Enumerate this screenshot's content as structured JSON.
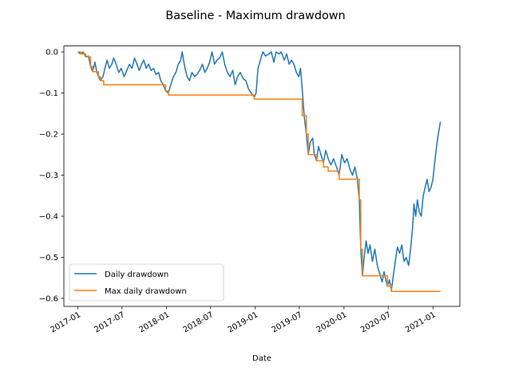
{
  "chart_data": {
    "type": "line",
    "title": "Baseline - Maximum drawdown",
    "xlabel": "Date",
    "ylabel": "",
    "xlim": [
      "2016-11-04",
      "2021-04-22"
    ],
    "ylim": [
      -0.6195,
      0.0145
    ],
    "x_ticks": [
      "2017-01-01",
      "2017-07-01",
      "2018-01-01",
      "2018-07-01",
      "2019-01-01",
      "2019-07-01",
      "2020-01-01",
      "2020-07-01",
      "2021-01-01"
    ],
    "x_tick_labels": [
      "2017-01",
      "2017-07",
      "2018-01",
      "2018-07",
      "2019-01",
      "2019-07",
      "2020-01",
      "2020-07",
      "2021-01"
    ],
    "y_ticks": [
      0.0,
      -0.1,
      -0.2,
      -0.3,
      -0.4,
      -0.5,
      -0.6
    ],
    "y_tick_labels": [
      "0.0",
      "−0.1",
      "−0.2",
      "−0.3",
      "−0.4",
      "−0.5",
      "−0.6"
    ],
    "grid": false,
    "legend_position": "lower left",
    "colors": {
      "daily": "#1f77b4",
      "max": "#ff7f0e"
    },
    "series": [
      {
        "name": "Daily drawdown",
        "points": [
          [
            "2017-01-01",
            0.0
          ],
          [
            "2017-01-12",
            -0.005
          ],
          [
            "2017-01-22",
            0.0
          ],
          [
            "2017-02-02",
            -0.012
          ],
          [
            "2017-02-13",
            -0.01
          ],
          [
            "2017-02-22",
            -0.035
          ],
          [
            "2017-03-02",
            -0.048
          ],
          [
            "2017-03-12",
            -0.025
          ],
          [
            "2017-03-18",
            -0.045
          ],
          [
            "2017-03-26",
            -0.06
          ],
          [
            "2017-04-04",
            -0.07
          ],
          [
            "2017-04-14",
            -0.06
          ],
          [
            "2017-04-22",
            -0.04
          ],
          [
            "2017-05-01",
            -0.02
          ],
          [
            "2017-05-10",
            -0.04
          ],
          [
            "2017-05-20",
            -0.03
          ],
          [
            "2017-05-28",
            -0.015
          ],
          [
            "2017-06-07",
            -0.03
          ],
          [
            "2017-06-18",
            -0.05
          ],
          [
            "2017-06-28",
            -0.04
          ],
          [
            "2017-07-10",
            -0.06
          ],
          [
            "2017-07-21",
            -0.045
          ],
          [
            "2017-08-01",
            -0.03
          ],
          [
            "2017-08-11",
            -0.04
          ],
          [
            "2017-08-22",
            -0.015
          ],
          [
            "2017-09-01",
            -0.03
          ],
          [
            "2017-09-10",
            -0.045
          ],
          [
            "2017-09-20",
            -0.03
          ],
          [
            "2017-09-29",
            -0.02
          ],
          [
            "2017-10-09",
            -0.04
          ],
          [
            "2017-10-19",
            -0.03
          ],
          [
            "2017-10-29",
            -0.045
          ],
          [
            "2017-11-08",
            -0.04
          ],
          [
            "2017-11-18",
            -0.055
          ],
          [
            "2017-11-29",
            -0.05
          ],
          [
            "2017-12-08",
            -0.07
          ],
          [
            "2017-12-18",
            -0.08
          ],
          [
            "2017-12-28",
            -0.095
          ],
          [
            "2018-01-08",
            -0.1
          ],
          [
            "2018-01-18",
            -0.08
          ],
          [
            "2018-01-29",
            -0.06
          ],
          [
            "2018-02-08",
            -0.05
          ],
          [
            "2018-02-18",
            -0.03
          ],
          [
            "2018-02-28",
            -0.02
          ],
          [
            "2018-03-06",
            -0.0
          ],
          [
            "2018-03-16",
            -0.035
          ],
          [
            "2018-03-26",
            -0.06
          ],
          [
            "2018-04-05",
            -0.07
          ],
          [
            "2018-04-15",
            -0.05
          ],
          [
            "2018-04-26",
            -0.06
          ],
          [
            "2018-05-06",
            -0.055
          ],
          [
            "2018-05-17",
            -0.045
          ],
          [
            "2018-05-28",
            -0.03
          ],
          [
            "2018-06-07",
            -0.05
          ],
          [
            "2018-06-17",
            -0.04
          ],
          [
            "2018-06-27",
            -0.025
          ],
          [
            "2018-07-07",
            0.0
          ],
          [
            "2018-07-17",
            -0.03
          ],
          [
            "2018-07-27",
            -0.02
          ],
          [
            "2018-08-07",
            -0.015
          ],
          [
            "2018-08-18",
            0.0
          ],
          [
            "2018-08-28",
            -0.03
          ],
          [
            "2018-09-08",
            -0.05
          ],
          [
            "2018-09-19",
            -0.06
          ],
          [
            "2018-09-30",
            -0.045
          ],
          [
            "2018-10-10",
            -0.08
          ],
          [
            "2018-10-20",
            -0.06
          ],
          [
            "2018-10-31",
            -0.05
          ],
          [
            "2018-11-12",
            -0.065
          ],
          [
            "2018-11-23",
            -0.07
          ],
          [
            "2018-12-04",
            -0.09
          ],
          [
            "2018-12-15",
            -0.1
          ],
          [
            "2018-12-28",
            -0.11
          ],
          [
            "2019-01-04",
            -0.1
          ],
          [
            "2019-01-12",
            -0.04
          ],
          [
            "2019-01-22",
            -0.02
          ],
          [
            "2019-02-01",
            0.0
          ],
          [
            "2019-02-12",
            -0.01
          ],
          [
            "2019-02-25",
            -0.005
          ],
          [
            "2019-03-08",
            0.0
          ],
          [
            "2019-03-18",
            -0.025
          ],
          [
            "2019-03-28",
            0.0
          ],
          [
            "2019-04-08",
            -0.005
          ],
          [
            "2019-04-18",
            0.0
          ],
          [
            "2019-04-30",
            -0.02
          ],
          [
            "2019-05-10",
            -0.005
          ],
          [
            "2019-05-20",
            -0.03
          ],
          [
            "2019-05-30",
            -0.02
          ],
          [
            "2019-06-09",
            -0.03
          ],
          [
            "2019-06-19",
            -0.05
          ],
          [
            "2019-06-29",
            -0.06
          ],
          [
            "2019-07-06",
            -0.04
          ],
          [
            "2019-07-13",
            -0.09
          ],
          [
            "2019-07-21",
            -0.155
          ],
          [
            "2019-07-30",
            -0.2
          ],
          [
            "2019-08-07",
            -0.25
          ],
          [
            "2019-08-15",
            -0.22
          ],
          [
            "2019-08-25",
            -0.21
          ],
          [
            "2019-09-01",
            -0.25
          ],
          [
            "2019-09-10",
            -0.265
          ],
          [
            "2019-09-18",
            -0.23
          ],
          [
            "2019-09-28",
            -0.25
          ],
          [
            "2019-10-08",
            -0.27
          ],
          [
            "2019-10-18",
            -0.24
          ],
          [
            "2019-10-28",
            -0.26
          ],
          [
            "2019-11-08",
            -0.275
          ],
          [
            "2019-11-19",
            -0.26
          ],
          [
            "2019-12-01",
            -0.28
          ],
          [
            "2019-12-12",
            -0.3
          ],
          [
            "2019-12-23",
            -0.25
          ],
          [
            "2020-01-03",
            -0.27
          ],
          [
            "2020-01-14",
            -0.26
          ],
          [
            "2020-01-25",
            -0.285
          ],
          [
            "2020-02-05",
            -0.3
          ],
          [
            "2020-02-15",
            -0.28
          ],
          [
            "2020-02-25",
            -0.31
          ],
          [
            "2020-03-04",
            -0.36
          ],
          [
            "2020-03-10",
            -0.48
          ],
          [
            "2020-03-17",
            -0.545
          ],
          [
            "2020-03-24",
            -0.5
          ],
          [
            "2020-04-01",
            -0.46
          ],
          [
            "2020-04-09",
            -0.49
          ],
          [
            "2020-04-17",
            -0.47
          ],
          [
            "2020-04-27",
            -0.51
          ],
          [
            "2020-05-07",
            -0.48
          ],
          [
            "2020-05-17",
            -0.52
          ],
          [
            "2020-05-27",
            -0.54
          ],
          [
            "2020-06-06",
            -0.56
          ],
          [
            "2020-06-14",
            -0.535
          ],
          [
            "2020-06-21",
            -0.555
          ],
          [
            "2020-06-28",
            -0.57
          ],
          [
            "2020-07-06",
            -0.555
          ],
          [
            "2020-07-14",
            -0.58
          ],
          [
            "2020-07-22",
            -0.545
          ],
          [
            "2020-07-30",
            -0.51
          ],
          [
            "2020-08-08",
            -0.475
          ],
          [
            "2020-08-17",
            -0.49
          ],
          [
            "2020-08-26",
            -0.47
          ],
          [
            "2020-09-04",
            -0.51
          ],
          [
            "2020-09-13",
            -0.5
          ],
          [
            "2020-09-23",
            -0.52
          ],
          [
            "2020-10-01",
            -0.48
          ],
          [
            "2020-10-09",
            -0.43
          ],
          [
            "2020-10-15",
            -0.37
          ],
          [
            "2020-10-22",
            -0.4
          ],
          [
            "2020-10-29",
            -0.36
          ],
          [
            "2020-11-06",
            -0.39
          ],
          [
            "2020-11-14",
            -0.4
          ],
          [
            "2020-11-22",
            -0.35
          ],
          [
            "2020-11-30",
            -0.33
          ],
          [
            "2020-12-08",
            -0.31
          ],
          [
            "2020-12-16",
            -0.34
          ],
          [
            "2020-12-24",
            -0.33
          ],
          [
            "2021-01-01",
            -0.31
          ],
          [
            "2021-01-10",
            -0.26
          ],
          [
            "2021-01-18",
            -0.22
          ],
          [
            "2021-01-26",
            -0.19
          ],
          [
            "2021-02-01",
            -0.17
          ]
        ]
      },
      {
        "name": "Max daily drawdown",
        "points": [
          [
            "2017-01-01",
            0.0
          ],
          [
            "2017-01-12",
            -0.005
          ],
          [
            "2017-02-02",
            -0.012
          ],
          [
            "2017-02-22",
            -0.035
          ],
          [
            "2017-03-02",
            -0.048
          ],
          [
            "2017-03-26",
            -0.06
          ],
          [
            "2017-04-04",
            -0.07
          ],
          [
            "2017-04-17",
            -0.08
          ],
          [
            "2017-12-28",
            -0.095
          ],
          [
            "2018-01-08",
            -0.105
          ],
          [
            "2018-12-28",
            -0.115
          ],
          [
            "2019-07-13",
            -0.155
          ],
          [
            "2019-07-30",
            -0.2
          ],
          [
            "2019-08-07",
            -0.25
          ],
          [
            "2019-09-10",
            -0.265
          ],
          [
            "2019-10-08",
            -0.28
          ],
          [
            "2019-10-28",
            -0.29
          ],
          [
            "2019-12-12",
            -0.31
          ],
          [
            "2020-03-04",
            -0.36
          ],
          [
            "2020-03-10",
            -0.48
          ],
          [
            "2020-03-17",
            -0.545
          ],
          [
            "2020-06-28",
            -0.57
          ],
          [
            "2020-07-14",
            -0.583
          ],
          [
            "2021-02-01",
            -0.583
          ]
        ]
      }
    ]
  }
}
